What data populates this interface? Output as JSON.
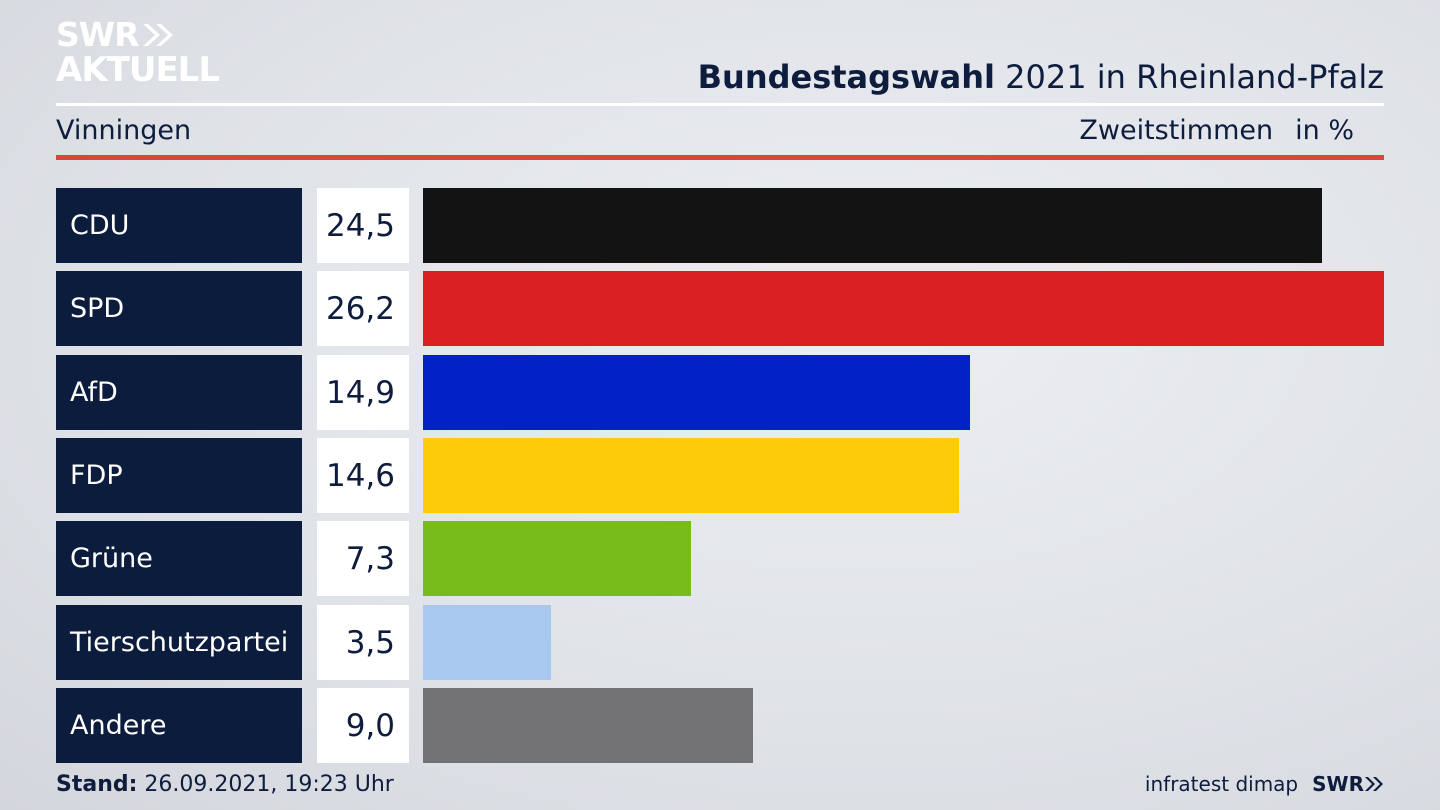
{
  "logo": {
    "line1": "SWR",
    "line2": "AKTUELL"
  },
  "header": {
    "title_bold": "Bundestagswahl",
    "title_rest": "2021 in Rheinland-Pfalz",
    "location": "Vinningen",
    "vote_type": "Zweitstimmen",
    "unit": "in %"
  },
  "chart_data": {
    "type": "bar",
    "orientation": "horizontal",
    "categories": [
      "CDU",
      "SPD",
      "AfD",
      "FDP",
      "Grüne",
      "Tierschutzpartei",
      "Andere"
    ],
    "values": [
      24.5,
      26.2,
      14.9,
      14.6,
      7.3,
      3.5,
      9.0
    ],
    "value_labels": [
      "24,5",
      "26,2",
      "14,9",
      "14,6",
      "7,3",
      "3,5",
      "9,0"
    ],
    "colors": [
      "#131313",
      "#d81f21",
      "#0222c8",
      "#fdcb0a",
      "#78bc1b",
      "#a9c8ef",
      "#727274"
    ],
    "xlim": [
      0,
      26.2
    ]
  },
  "footer": {
    "stand_label": "Stand:",
    "stand_value": "26.09.2021, 19:23 Uhr",
    "source": "infratest dimap",
    "brand": "SWR"
  }
}
